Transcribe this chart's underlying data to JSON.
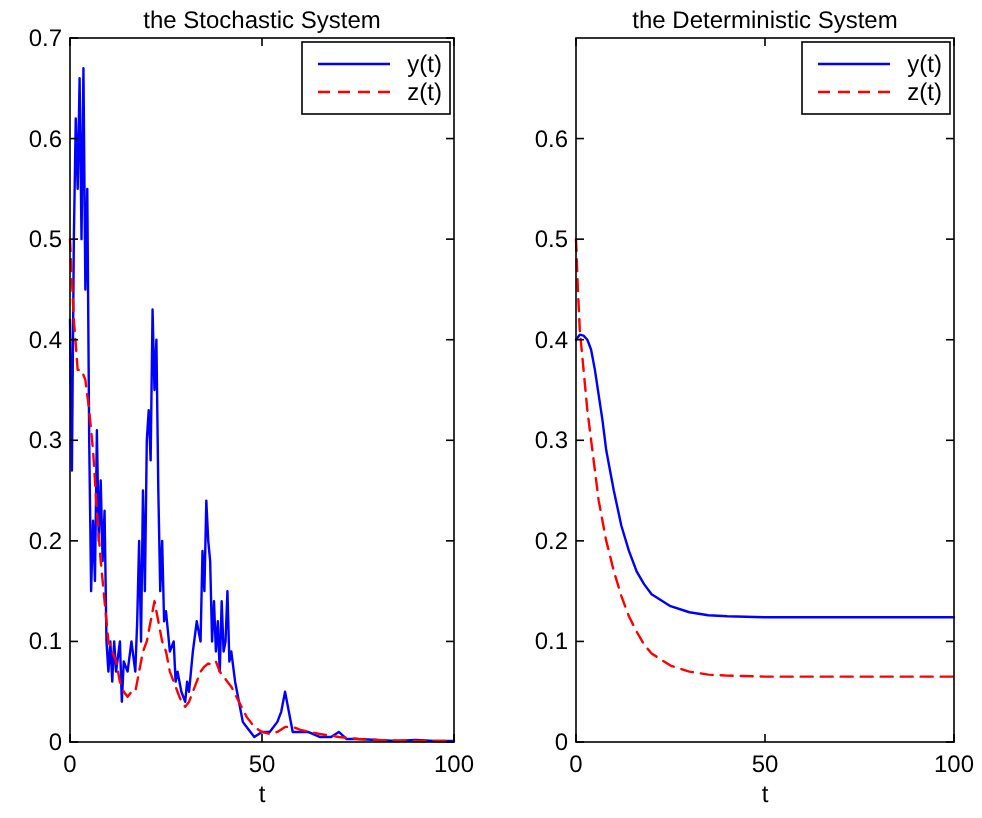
{
  "chart_data": [
    {
      "type": "line",
      "title": "the Stochastic System",
      "xlabel": "t",
      "xlim": [
        0,
        100
      ],
      "xticks": [
        0,
        50,
        100
      ],
      "ylim": [
        0,
        0.7
      ],
      "yticks": [
        0,
        0.1,
        0.2,
        0.3,
        0.4,
        0.5,
        0.6,
        0.7
      ],
      "legend": "top right",
      "grid": false,
      "series": [
        {
          "name": "y(t)",
          "color": "#0000ff",
          "line_style": "solid",
          "x": [
            0,
            0.5,
            1,
            1.5,
            2,
            2.5,
            3,
            3.5,
            4,
            4.5,
            5,
            5.5,
            6,
            6.5,
            7,
            7.5,
            8,
            8.5,
            9,
            9.5,
            10,
            10.5,
            11,
            11.5,
            12,
            13,
            13.5,
            14,
            15,
            16,
            17,
            17.5,
            18,
            18.5,
            19,
            19.5,
            20,
            20.5,
            21,
            21.5,
            22,
            22.5,
            23,
            23.5,
            24,
            24.5,
            25,
            26,
            27,
            27.5,
            28,
            29,
            30,
            30.5,
            31,
            32,
            33,
            34,
            34.5,
            35,
            35.5,
            36,
            36.5,
            37,
            37.5,
            38,
            38.5,
            39,
            39.5,
            40,
            40.5,
            41,
            41.5,
            42,
            43,
            44,
            45,
            46,
            47,
            48,
            50,
            52,
            54,
            55,
            56,
            57,
            58,
            60,
            62,
            65,
            68,
            70,
            72,
            75,
            80,
            85,
            90,
            95,
            100
          ],
          "values": [
            0.42,
            0.27,
            0.5,
            0.62,
            0.55,
            0.66,
            0.5,
            0.67,
            0.45,
            0.55,
            0.3,
            0.15,
            0.22,
            0.16,
            0.31,
            0.2,
            0.26,
            0.18,
            0.23,
            0.1,
            0.07,
            0.1,
            0.06,
            0.1,
            0.07,
            0.1,
            0.04,
            0.08,
            0.07,
            0.1,
            0.07,
            0.12,
            0.2,
            0.1,
            0.25,
            0.15,
            0.3,
            0.33,
            0.28,
            0.43,
            0.35,
            0.4,
            0.25,
            0.15,
            0.2,
            0.12,
            0.13,
            0.09,
            0.1,
            0.06,
            0.07,
            0.05,
            0.04,
            0.06,
            0.05,
            0.09,
            0.12,
            0.1,
            0.19,
            0.15,
            0.24,
            0.2,
            0.18,
            0.1,
            0.14,
            0.09,
            0.12,
            0.07,
            0.14,
            0.09,
            0.1,
            0.15,
            0.08,
            0.09,
            0.06,
            0.04,
            0.02,
            0.015,
            0.01,
            0.005,
            0.01,
            0.01,
            0.02,
            0.03,
            0.05,
            0.03,
            0.01,
            0.01,
            0.01,
            0.005,
            0.005,
            0.01,
            0.003,
            0.003,
            0.002,
            0.001,
            0.002,
            0.001,
            0.001
          ]
        },
        {
          "name": "z(t)",
          "color": "#ff0000",
          "line_style": "dashed",
          "x": [
            0,
            1,
            2,
            3,
            4,
            5,
            6,
            7,
            8,
            9,
            10,
            11,
            12,
            13,
            14,
            15,
            16,
            17,
            18,
            19,
            20,
            21,
            22,
            23,
            24,
            25,
            26,
            27,
            28,
            29,
            30,
            31,
            32,
            33,
            34,
            35,
            36,
            37,
            38,
            39,
            40,
            41,
            42,
            44,
            46,
            48,
            50,
            52,
            54,
            56,
            58,
            60,
            65,
            70,
            75,
            80,
            90,
            100
          ],
          "values": [
            0.5,
            0.42,
            0.37,
            0.37,
            0.36,
            0.33,
            0.29,
            0.23,
            0.18,
            0.14,
            0.1,
            0.09,
            0.08,
            0.06,
            0.05,
            0.045,
            0.05,
            0.05,
            0.07,
            0.09,
            0.1,
            0.12,
            0.14,
            0.12,
            0.1,
            0.09,
            0.07,
            0.06,
            0.05,
            0.04,
            0.035,
            0.04,
            0.05,
            0.06,
            0.07,
            0.075,
            0.078,
            0.077,
            0.08,
            0.07,
            0.065,
            0.06,
            0.055,
            0.04,
            0.025,
            0.015,
            0.01,
            0.008,
            0.01,
            0.015,
            0.015,
            0.012,
            0.008,
            0.005,
            0.003,
            0.002,
            0.001,
            0.001
          ]
        }
      ]
    },
    {
      "type": "line",
      "title": "the Deterministic System",
      "xlabel": "t",
      "xlim": [
        0,
        100
      ],
      "xticks": [
        0,
        50,
        100
      ],
      "ylim": [
        0,
        0.7
      ],
      "yticks": [
        0,
        0.1,
        0.2,
        0.3,
        0.4,
        0.5,
        0.6
      ],
      "legend": "top right",
      "grid": false,
      "series": [
        {
          "name": "y(t)",
          "color": "#0000ff",
          "line_style": "solid",
          "x": [
            0,
            1,
            2,
            3,
            4,
            5,
            6,
            7,
            8,
            10,
            12,
            14,
            16,
            18,
            20,
            25,
            30,
            35,
            40,
            50,
            60,
            80,
            100
          ],
          "values": [
            0.4,
            0.405,
            0.404,
            0.4,
            0.39,
            0.37,
            0.345,
            0.32,
            0.29,
            0.25,
            0.215,
            0.19,
            0.17,
            0.157,
            0.147,
            0.135,
            0.129,
            0.126,
            0.125,
            0.124,
            0.124,
            0.124,
            0.124
          ]
        },
        {
          "name": "z(t)",
          "color": "#ff0000",
          "line_style": "dashed",
          "x": [
            0,
            0.5,
            1,
            2,
            3,
            4,
            5,
            6,
            8,
            10,
            12,
            14,
            16,
            18,
            20,
            25,
            30,
            35,
            40,
            50,
            60,
            80,
            100
          ],
          "values": [
            0.5,
            0.45,
            0.41,
            0.37,
            0.33,
            0.3,
            0.27,
            0.24,
            0.2,
            0.17,
            0.145,
            0.125,
            0.11,
            0.097,
            0.088,
            0.076,
            0.07,
            0.067,
            0.066,
            0.065,
            0.065,
            0.065,
            0.065
          ]
        }
      ]
    }
  ]
}
